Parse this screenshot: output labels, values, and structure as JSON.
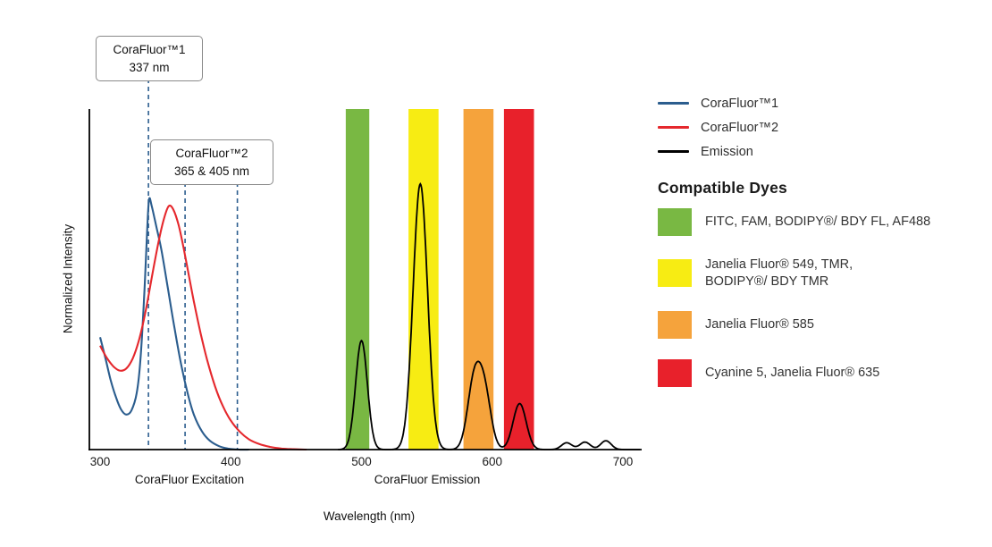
{
  "chart_data": {
    "type": "line",
    "title": "",
    "xlabel": "Wavelength (nm)",
    "ylabel": "Normalized Intensity",
    "xlim": [
      300,
      714
    ],
    "ylim": [
      0,
      1.0
    ],
    "grid": false,
    "legend_position": "right",
    "x_ticks": [
      300,
      400,
      500,
      600,
      700
    ],
    "x_section_labels": [
      {
        "label": "CoraFluor Excitation",
        "at_nm": 368
      },
      {
        "label": "CoraFluor Emission",
        "at_nm": 550
      }
    ],
    "dye_bands": [
      {
        "name": "green",
        "from_nm": 488,
        "to_nm": 506,
        "color": "#79b843"
      },
      {
        "name": "yellow",
        "from_nm": 536,
        "to_nm": 559,
        "color": "#f7ec13"
      },
      {
        "name": "orange",
        "from_nm": 578,
        "to_nm": 601,
        "color": "#f5a33c"
      },
      {
        "name": "red",
        "from_nm": 609,
        "to_nm": 632,
        "color": "#e8212b"
      }
    ],
    "excitation_markers": [
      {
        "nm": 337,
        "series": "CoraFluor™1",
        "annotation": 0
      },
      {
        "nm": 365,
        "series": "CoraFluor™2",
        "annotation": 1
      },
      {
        "nm": 405,
        "series": "CoraFluor™2",
        "annotation": 1
      }
    ],
    "series": [
      {
        "name": "CoraFluor™1",
        "kind": "excitation",
        "color": "#2b5d8e",
        "points": [
          [
            300,
            0.33
          ],
          [
            304,
            0.27
          ],
          [
            308,
            0.205
          ],
          [
            312,
            0.155
          ],
          [
            316,
            0.118
          ],
          [
            320,
            0.103
          ],
          [
            324,
            0.115
          ],
          [
            328,
            0.165
          ],
          [
            331,
            0.27
          ],
          [
            334,
            0.47
          ],
          [
            336,
            0.645
          ],
          [
            337.5,
            0.735
          ],
          [
            339.5,
            0.715
          ],
          [
            343,
            0.655
          ],
          [
            347,
            0.585
          ],
          [
            352,
            0.47
          ],
          [
            357,
            0.355
          ],
          [
            362,
            0.25
          ],
          [
            367,
            0.165
          ],
          [
            372,
            0.1
          ],
          [
            378,
            0.053
          ],
          [
            384,
            0.026
          ],
          [
            391,
            0.01
          ],
          [
            398,
            0.003
          ],
          [
            406,
            0.0
          ],
          [
            414,
            0.0
          ]
        ]
      },
      {
        "name": "CoraFluor™2",
        "kind": "excitation",
        "color": "#e5282d",
        "points": [
          [
            300,
            0.305
          ],
          [
            305,
            0.27
          ],
          [
            310,
            0.245
          ],
          [
            315,
            0.232
          ],
          [
            320,
            0.238
          ],
          [
            325,
            0.268
          ],
          [
            330,
            0.325
          ],
          [
            335,
            0.41
          ],
          [
            340,
            0.515
          ],
          [
            345,
            0.615
          ],
          [
            349,
            0.68
          ],
          [
            352.5,
            0.715
          ],
          [
            356,
            0.705
          ],
          [
            360,
            0.66
          ],
          [
            364,
            0.59
          ],
          [
            368,
            0.51
          ],
          [
            372,
            0.43
          ],
          [
            377,
            0.34
          ],
          [
            382,
            0.262
          ],
          [
            388,
            0.185
          ],
          [
            394,
            0.127
          ],
          [
            400,
            0.085
          ],
          [
            407,
            0.052
          ],
          [
            414,
            0.03
          ],
          [
            422,
            0.016
          ],
          [
            430,
            0.008
          ],
          [
            439,
            0.003
          ],
          [
            448,
            0.001
          ],
          [
            458,
            0.0
          ]
        ]
      },
      {
        "name": "Emission",
        "kind": "emission",
        "color": "#000000",
        "peaks": [
          {
            "center_nm": 500,
            "height": 0.32,
            "sigma_nm": 4.5
          },
          {
            "center_nm": 545,
            "height": 0.78,
            "sigma_nm": 5.5
          },
          {
            "center_nm": 586,
            "height": 0.19,
            "sigma_nm": 5.0
          },
          {
            "center_nm": 594,
            "height": 0.165,
            "sigma_nm": 5.0
          },
          {
            "center_nm": 621,
            "height": 0.135,
            "sigma_nm": 5.0
          },
          {
            "center_nm": 657,
            "height": 0.02,
            "sigma_nm": 4.0
          },
          {
            "center_nm": 671,
            "height": 0.022,
            "sigma_nm": 4.0
          },
          {
            "center_nm": 687,
            "height": 0.026,
            "sigma_nm": 4.0
          }
        ]
      }
    ]
  },
  "annotations": [
    {
      "title": "CoraFluor™1",
      "value": "337 nm"
    },
    {
      "title": "CoraFluor™2",
      "value": "365 & 405 nm"
    }
  ],
  "legend": {
    "items": [
      {
        "label": "CoraFluor™1",
        "color": "#2b5d8e"
      },
      {
        "label": "CoraFluor™2",
        "color": "#e5282d"
      },
      {
        "label": "Emission",
        "color": "#000000"
      }
    ]
  },
  "dyes": {
    "heading": "Compatible Dyes",
    "items": [
      {
        "label": "FITC, FAM, BODIPY®/ BDY FL, AF488",
        "color": "#79b843"
      },
      {
        "label": "Janelia Fluor® 549, TMR,\nBODIPY®/ BDY TMR",
        "color": "#f7ec13"
      },
      {
        "label": "Janelia Fluor® 585",
        "color": "#f5a33c"
      },
      {
        "label": "Cyanine 5, Janelia Fluor® 635",
        "color": "#e8212b"
      }
    ]
  }
}
